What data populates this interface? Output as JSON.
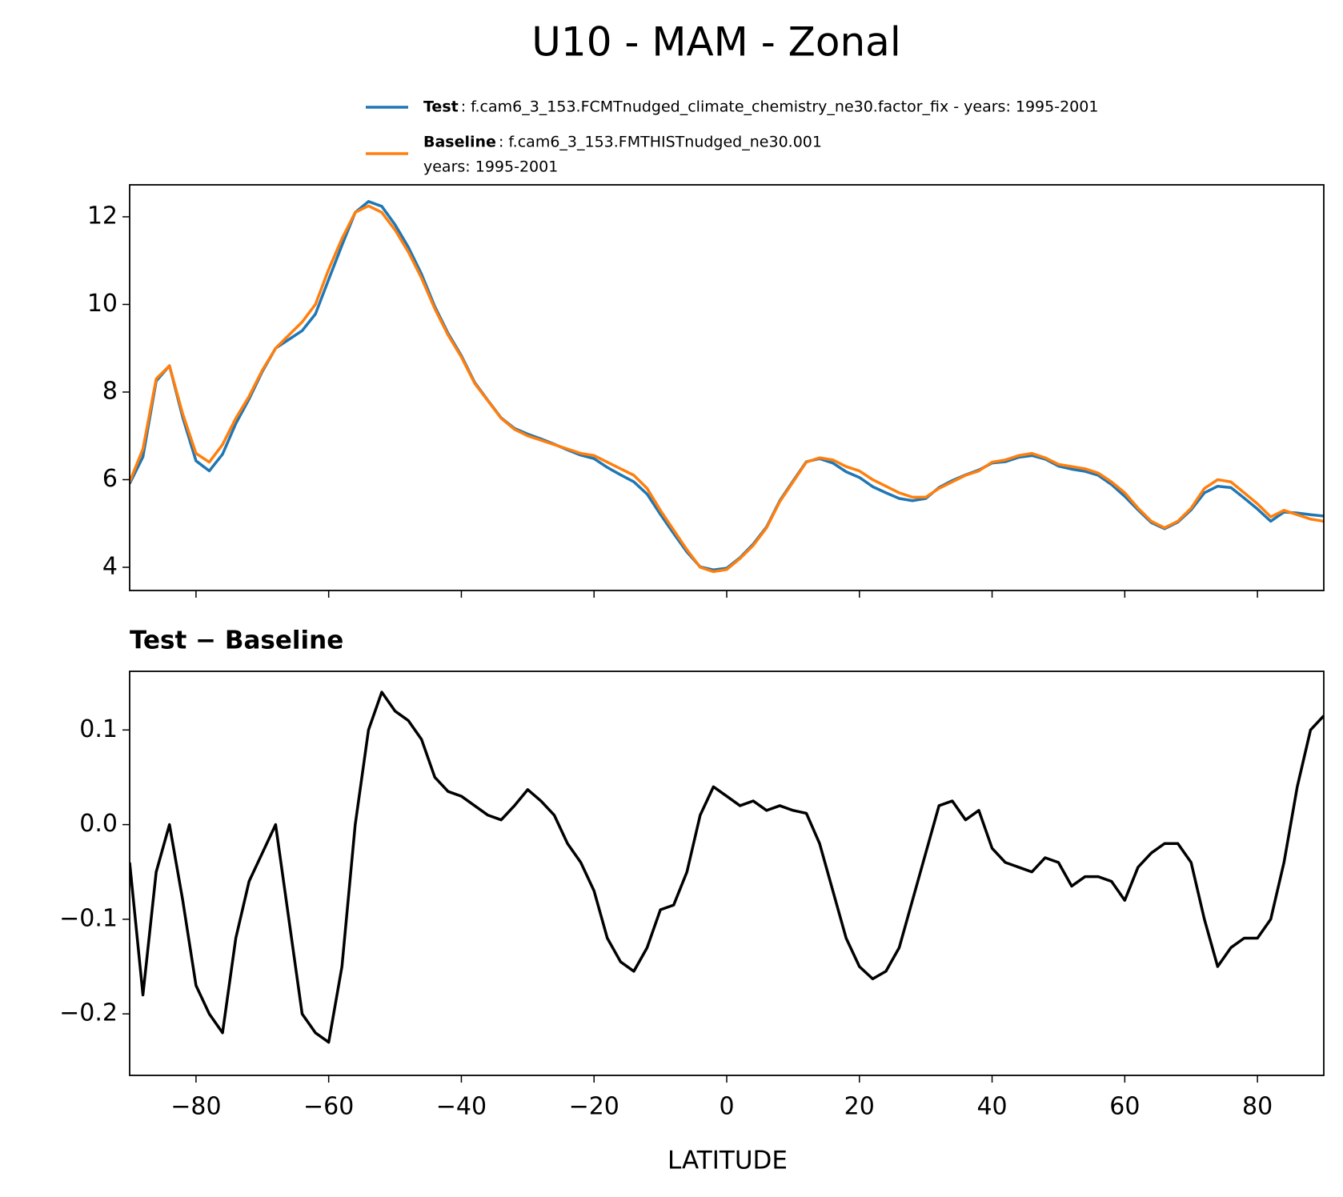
{
  "chart_data": [
    {
      "type": "line",
      "title": "U10 - MAM - Zonal",
      "x": [
        -90,
        -88,
        -86,
        -84,
        -82,
        -80,
        -78,
        -76,
        -74,
        -72,
        -70,
        -68,
        -66,
        -64,
        -62,
        -60,
        -58,
        -56,
        -54,
        -52,
        -50,
        -48,
        -46,
        -44,
        -42,
        -40,
        -38,
        -36,
        -34,
        -32,
        -30,
        -28,
        -26,
        -24,
        -22,
        -20,
        -18,
        -16,
        -14,
        -12,
        -10,
        -8,
        -6,
        -4,
        -2,
        0,
        2,
        4,
        6,
        8,
        10,
        12,
        14,
        16,
        18,
        20,
        22,
        24,
        26,
        28,
        30,
        32,
        34,
        36,
        38,
        40,
        42,
        44,
        46,
        48,
        50,
        52,
        54,
        56,
        58,
        60,
        62,
        64,
        66,
        68,
        70,
        72,
        74,
        76,
        78,
        80,
        82,
        84,
        86,
        88,
        90
      ],
      "series": [
        {
          "name": "Test",
          "description": [
            ": f.cam6_3_153.FCMTnudged_climate_chemistry_ne30.factor_fix - years: 1995-2001"
          ],
          "color": "#1f77b4",
          "values": [
            5.91,
            6.52,
            8.25,
            8.6,
            7.42,
            6.43,
            6.2,
            6.58,
            7.28,
            7.84,
            8.47,
            9.0,
            9.2,
            9.4,
            9.78,
            10.57,
            11.35,
            12.1,
            12.35,
            12.24,
            11.82,
            11.31,
            10.69,
            9.95,
            9.34,
            8.83,
            8.22,
            7.81,
            7.41,
            7.17,
            7.04,
            6.93,
            6.81,
            6.68,
            6.56,
            6.48,
            6.28,
            6.11,
            5.95,
            5.67,
            5.21,
            4.77,
            4.35,
            4.01,
            3.94,
            3.98,
            4.22,
            4.53,
            4.92,
            5.52,
            5.97,
            6.41,
            6.48,
            6.38,
            6.18,
            6.05,
            5.84,
            5.7,
            5.57,
            5.52,
            5.57,
            5.82,
            5.98,
            6.11,
            6.22,
            6.38,
            6.41,
            6.51,
            6.55,
            6.47,
            6.31,
            6.24,
            6.19,
            6.1,
            5.89,
            5.62,
            5.31,
            5.02,
            4.88,
            5.03,
            5.31,
            5.7,
            5.85,
            5.82,
            5.58,
            5.33,
            5.05,
            5.26,
            5.24,
            5.2,
            5.17
          ]
        },
        {
          "name": "Baseline",
          "description": [
            ": f.cam6_3_153.FMTHISTnudged_ne30.001",
            "years: 1995-2001"
          ],
          "color": "#ff7f0e",
          "values": [
            5.95,
            6.7,
            8.3,
            8.6,
            7.5,
            6.6,
            6.4,
            6.8,
            7.4,
            7.9,
            8.5,
            9.0,
            9.3,
            9.6,
            10.0,
            10.8,
            11.5,
            12.1,
            12.25,
            12.1,
            11.7,
            11.2,
            10.6,
            9.9,
            9.3,
            8.8,
            8.2,
            7.8,
            7.4,
            7.15,
            7.0,
            6.9,
            6.8,
            6.7,
            6.6,
            6.55,
            6.4,
            6.25,
            6.1,
            5.8,
            5.3,
            4.85,
            4.4,
            4.0,
            3.9,
            3.95,
            4.2,
            4.5,
            4.9,
            5.5,
            5.95,
            6.4,
            6.5,
            6.45,
            6.3,
            6.2,
            6.0,
            5.85,
            5.7,
            5.6,
            5.6,
            5.8,
            5.95,
            6.1,
            6.2,
            6.4,
            6.45,
            6.55,
            6.6,
            6.5,
            6.35,
            6.3,
            6.25,
            6.15,
            5.95,
            5.7,
            5.35,
            5.05,
            4.9,
            5.05,
            5.35,
            5.8,
            6.0,
            5.95,
            5.7,
            5.45,
            5.15,
            5.3,
            5.2,
            5.1,
            5.05
          ]
        }
      ],
      "xlim": [
        -90,
        90
      ],
      "xticks": [
        -80,
        -60,
        -40,
        -20,
        0,
        20,
        40,
        60,
        80
      ],
      "ylim": [
        3.47,
        12.73
      ],
      "yticks": [
        4,
        6,
        8,
        10,
        12
      ]
    },
    {
      "type": "line",
      "title": "Test − Baseline",
      "xlabel": "LATITUDE",
      "x": [
        -90,
        -88,
        -86,
        -84,
        -82,
        -80,
        -78,
        -76,
        -74,
        -72,
        -70,
        -68,
        -66,
        -64,
        -62,
        -60,
        -58,
        -56,
        -54,
        -52,
        -50,
        -48,
        -46,
        -44,
        -42,
        -40,
        -38,
        -36,
        -34,
        -32,
        -30,
        -28,
        -26,
        -24,
        -22,
        -20,
        -18,
        -16,
        -14,
        -12,
        -10,
        -8,
        -6,
        -4,
        -2,
        0,
        2,
        4,
        6,
        8,
        10,
        12,
        14,
        16,
        18,
        20,
        22,
        24,
        26,
        28,
        30,
        32,
        34,
        36,
        38,
        40,
        42,
        44,
        46,
        48,
        50,
        52,
        54,
        56,
        58,
        60,
        62,
        64,
        66,
        68,
        70,
        72,
        74,
        76,
        78,
        80,
        82,
        84,
        86,
        88,
        90
      ],
      "series": [
        {
          "color": "#000000",
          "values": [
            -0.04,
            -0.18,
            -0.05,
            0.0,
            -0.08,
            -0.17,
            -0.2,
            -0.22,
            -0.12,
            -0.06,
            -0.03,
            0.0,
            -0.1,
            -0.2,
            -0.22,
            -0.23,
            -0.15,
            0.0,
            0.1,
            0.14,
            0.12,
            0.11,
            0.09,
            0.05,
            0.035,
            0.03,
            0.02,
            0.01,
            0.005,
            0.02,
            0.037,
            0.025,
            0.01,
            -0.02,
            -0.04,
            -0.07,
            -0.12,
            -0.145,
            -0.155,
            -0.13,
            -0.09,
            -0.085,
            -0.05,
            0.01,
            0.04,
            0.03,
            0.02,
            0.025,
            0.015,
            0.02,
            0.015,
            0.012,
            -0.02,
            -0.07,
            -0.12,
            -0.15,
            -0.163,
            -0.155,
            -0.13,
            -0.08,
            -0.03,
            0.02,
            0.025,
            0.005,
            0.015,
            -0.025,
            -0.04,
            -0.045,
            -0.05,
            -0.035,
            -0.04,
            -0.065,
            -0.055,
            -0.055,
            -0.06,
            -0.08,
            -0.045,
            -0.03,
            -0.02,
            -0.02,
            -0.04,
            -0.1,
            -0.15,
            -0.13,
            -0.12,
            -0.12,
            -0.1,
            -0.04,
            0.04,
            0.1,
            0.115
          ]
        }
      ],
      "xlim": [
        -90,
        90
      ],
      "xticks": [
        {
          "value": -80,
          "label": "−80"
        },
        {
          "value": -60,
          "label": "−60"
        },
        {
          "value": -40,
          "label": "−40"
        },
        {
          "value": -20,
          "label": "−20"
        },
        0,
        20,
        40,
        60,
        80
      ],
      "ylim": [
        -0.265,
        0.162
      ],
      "yticks": [
        0.1,
        {
          "value": 0.0,
          "label": "0.0"
        },
        {
          "value": -0.1,
          "label": "−0.1"
        },
        {
          "value": -0.2,
          "label": "−0.2"
        }
      ]
    }
  ]
}
